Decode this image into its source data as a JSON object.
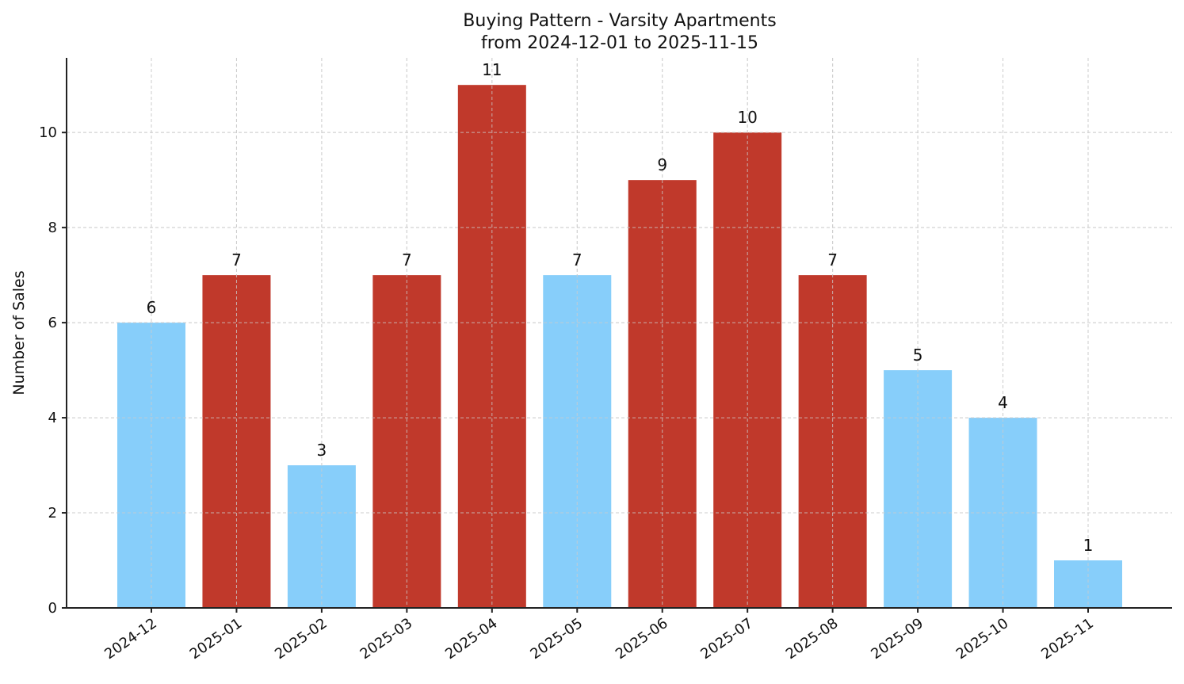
{
  "chart_data": {
    "type": "bar",
    "title": "Buying Pattern - Varsity Apartments",
    "subtitle": "from 2024-12-01 to 2025-11-15",
    "xlabel": "",
    "ylabel": "Number of Sales",
    "categories": [
      "2024-12",
      "2025-01",
      "2025-02",
      "2025-03",
      "2025-04",
      "2025-05",
      "2025-06",
      "2025-07",
      "2025-08",
      "2025-09",
      "2025-10",
      "2025-11"
    ],
    "values": [
      6,
      7,
      3,
      7,
      11,
      7,
      9,
      10,
      7,
      5,
      4,
      1
    ],
    "bar_colors": [
      "#87cefa",
      "#c0392b",
      "#87cefa",
      "#c0392b",
      "#c0392b",
      "#87cefa",
      "#c0392b",
      "#c0392b",
      "#c0392b",
      "#87cefa",
      "#87cefa",
      "#87cefa"
    ],
    "yticks": [
      0,
      2,
      4,
      6,
      8,
      10
    ],
    "ylim": [
      0,
      11.57
    ],
    "grid": true,
    "legend": null,
    "data_labels": true,
    "xtick_rotation": 35
  },
  "colors": {
    "high": "#c0392b",
    "low": "#87cefa",
    "grid": "#cccccc",
    "axis": "#222222"
  }
}
